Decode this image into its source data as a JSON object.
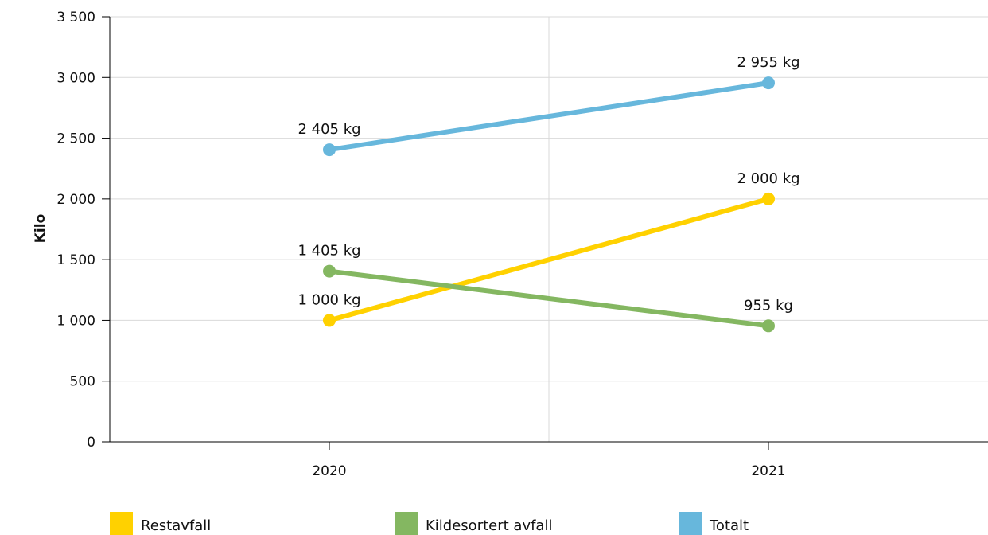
{
  "chart_data": {
    "type": "line",
    "title": "",
    "xlabel": "",
    "ylabel": "Kilo",
    "categories": [
      "2020",
      "2021"
    ],
    "ylim": [
      0,
      3500
    ],
    "yticks": [
      0,
      500,
      1000,
      1500,
      2000,
      2500,
      3000,
      3500
    ],
    "ytick_labels": [
      "0",
      "500",
      "1 000",
      "1 500",
      "2 000",
      "2 500",
      "3 000",
      "3 500"
    ],
    "grid": true,
    "legend_position": "bottom",
    "series": [
      {
        "name": "Restavfall",
        "color": "#FFD100",
        "values": [
          1000,
          2000
        ],
        "labels": [
          "1 000 kg",
          "2 000 kg"
        ]
      },
      {
        "name": "Kildesortert avfall",
        "color": "#84B761",
        "values": [
          1405,
          955
        ],
        "labels": [
          "1 405 kg",
          "955 kg"
        ]
      },
      {
        "name": "Totalt",
        "color": "#67B7DC",
        "values": [
          2405,
          2955
        ],
        "labels": [
          "2 405 kg",
          "2 955 kg"
        ]
      }
    ]
  }
}
